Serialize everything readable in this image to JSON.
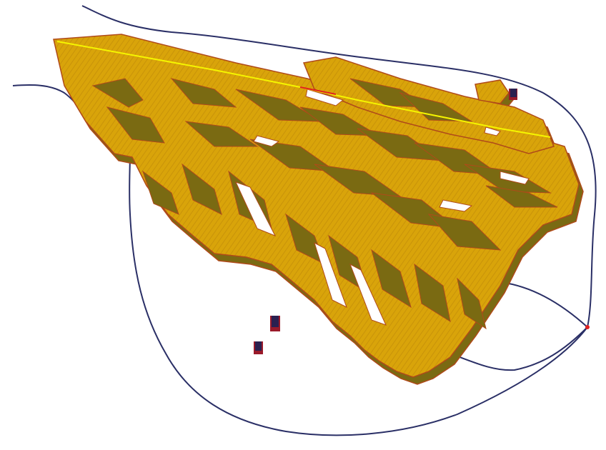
{
  "scene": {
    "colors": {
      "background": "#ffffff",
      "block_top": "#d9a40a",
      "block_side": "#7a6a12",
      "block_edge": "#b04a1a",
      "outline_curve": "#2a2f66",
      "highlight_line": "#f5f500",
      "red_line": "#e02020",
      "small_block_top": "#2a2050",
      "small_block_side": "#9a1a2a"
    }
  }
}
